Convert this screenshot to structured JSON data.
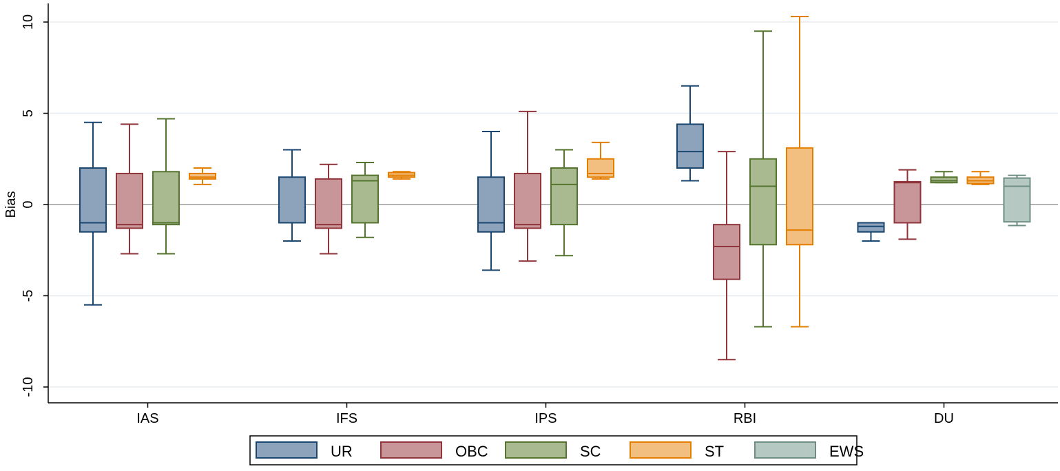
{
  "chart_data": {
    "type": "box",
    "ylabel": "Bias",
    "ylim": [
      -10.5,
      10.7
    ],
    "y_ticks": [
      -10,
      -5,
      0,
      5,
      10
    ],
    "categories": [
      "IAS",
      "IFS",
      "IPS",
      "RBI",
      "DU"
    ],
    "grid": true,
    "reference_line": 0,
    "legend_position": "bottom",
    "series": [
      {
        "name": "UR",
        "fill": "#8da2bb",
        "stroke": "#1a476f",
        "boxes": [
          {
            "min": -5.5,
            "q1": -1.5,
            "median": -1.0,
            "q3": 2.0,
            "max": 4.5
          },
          {
            "min": -2.0,
            "q1": -1.0,
            "median": -1.0,
            "q3": 1.5,
            "max": 3.0
          },
          {
            "min": -3.6,
            "q1": -1.5,
            "median": -1.0,
            "q3": 1.5,
            "max": 4.0
          },
          {
            "min": 1.3,
            "q1": 2.0,
            "median": 2.9,
            "q3": 4.4,
            "max": 6.5
          },
          {
            "min": -2.0,
            "q1": -1.5,
            "median": -1.2,
            "q3": -1.0,
            "max": -1.0
          }
        ]
      },
      {
        "name": "OBC",
        "fill": "#c89599",
        "stroke": "#90353b",
        "boxes": [
          {
            "min": -2.7,
            "q1": -1.3,
            "median": -1.1,
            "q3": 1.7,
            "max": 4.4
          },
          {
            "min": -2.7,
            "q1": -1.3,
            "median": -1.1,
            "q3": 1.4,
            "max": 2.2
          },
          {
            "min": -3.1,
            "q1": -1.3,
            "median": -1.1,
            "q3": 1.7,
            "max": 5.1
          },
          {
            "min": -8.5,
            "q1": -4.1,
            "median": -2.3,
            "q3": -1.1,
            "max": 2.9
          },
          {
            "min": -1.9,
            "q1": -1.0,
            "median": 1.2,
            "q3": 1.25,
            "max": 1.9
          }
        ]
      },
      {
        "name": "SC",
        "fill": "#a9b990",
        "stroke": "#55752f",
        "boxes": [
          {
            "min": -2.7,
            "q1": -1.1,
            "median": -1.0,
            "q3": 1.8,
            "max": 4.7
          },
          {
            "min": -1.8,
            "q1": -1.0,
            "median": 1.3,
            "q3": 1.6,
            "max": 2.3
          },
          {
            "min": -2.8,
            "q1": -1.1,
            "median": 1.1,
            "q3": 2.0,
            "max": 3.0
          },
          {
            "min": -6.7,
            "q1": -2.2,
            "median": 1.0,
            "q3": 2.5,
            "max": 9.5
          },
          {
            "min": 1.2,
            "q1": 1.2,
            "median": 1.3,
            "q3": 1.5,
            "max": 1.8
          }
        ]
      },
      {
        "name": "ST",
        "fill": "#f3bf81",
        "stroke": "#e37e00",
        "boxes": [
          {
            "min": 1.1,
            "q1": 1.4,
            "median": 1.5,
            "q3": 1.7,
            "max": 2.0
          },
          {
            "min": 1.4,
            "q1": 1.5,
            "median": 1.6,
            "q3": 1.75,
            "max": 1.8
          },
          {
            "min": 1.4,
            "q1": 1.5,
            "median": 1.7,
            "q3": 2.5,
            "max": 3.4
          },
          {
            "min": -6.7,
            "q1": -2.2,
            "median": -1.4,
            "q3": 3.1,
            "max": 10.3
          },
          {
            "min": 1.1,
            "q1": 1.15,
            "median": 1.3,
            "q3": 1.5,
            "max": 1.8
          }
        ]
      },
      {
        "name": "EWS",
        "fill": "#b6c8c2",
        "stroke": "#6e8e84",
        "boxes": [
          null,
          null,
          null,
          null,
          {
            "min": -1.15,
            "q1": -0.95,
            "median": 1.0,
            "q3": 1.45,
            "max": 1.6
          }
        ]
      }
    ]
  }
}
